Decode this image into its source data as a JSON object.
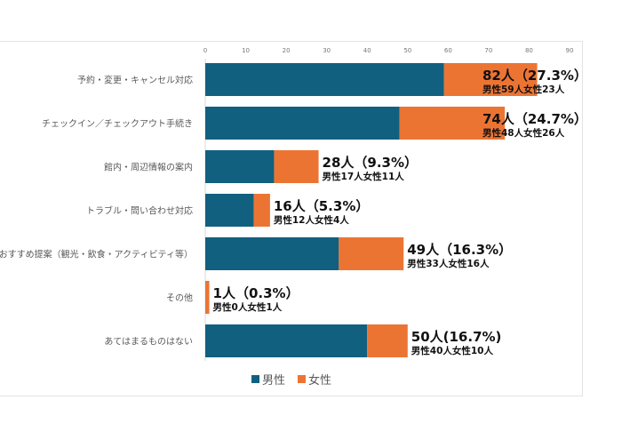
{
  "chart_data": {
    "type": "bar",
    "orientation": "horizontal",
    "stacked": true,
    "categories": [
      "予約・変更・キャンセル対応",
      "チェックイン／チェックアウト手続き",
      "館内・周辺情報の案内",
      "トラブル・問い合わせ対応",
      "おすすめ提案（観光・飲食・アクティビティ等）",
      "その他",
      "あてはまるものはない"
    ],
    "series": [
      {
        "name": "男性",
        "color": "#12607f",
        "values": [
          59,
          48,
          17,
          12,
          33,
          0,
          40
        ]
      },
      {
        "name": "女性",
        "color": "#ec7433",
        "values": [
          23,
          26,
          11,
          4,
          16,
          1,
          10
        ]
      }
    ],
    "data_labels": [
      {
        "main": "82人（27.3%）",
        "sub": "男性59人女性23人"
      },
      {
        "main": "74人（24.7%）",
        "sub": "男性48人女性26人"
      },
      {
        "main": "28人（9.3%）",
        "sub": "男性17人女性11人"
      },
      {
        "main": "16人（5.3%）",
        "sub": "男性12人女性4人"
      },
      {
        "main": "49人（16.3%）",
        "sub": "男性33人女性16人"
      },
      {
        "main": "1人（0.3%）",
        "sub": "男性0人女性1人"
      },
      {
        "main": "50人(16.7%)",
        "sub": "男性40人女性10人"
      }
    ],
    "xlim": [
      0,
      90
    ],
    "xticks": [
      "0",
      "10",
      "20",
      "30",
      "40",
      "50",
      "60",
      "70",
      "80",
      "90"
    ],
    "axis_position": "top",
    "grid": false,
    "legend_position": "bottom"
  }
}
